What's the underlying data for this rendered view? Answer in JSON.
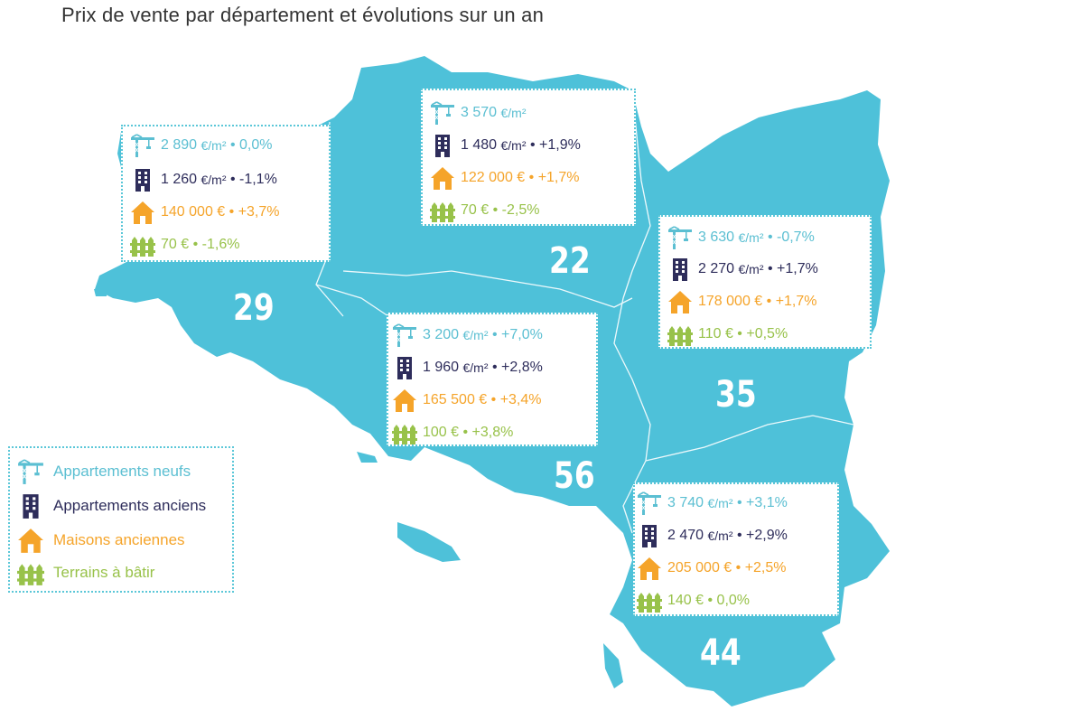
{
  "title": "Prix de vente par département et évolutions sur un an",
  "colors": {
    "map": "#4ec1d9",
    "neuf": "#5bbfd2",
    "ancien": "#2e2d5b",
    "maison": "#f5a42a",
    "terrain": "#98c24a"
  },
  "departments": [
    {
      "code": "29",
      "neuf": {
        "value": "2 890",
        "unit": "€/m²",
        "change": "0,0%"
      },
      "ancien": {
        "value": "1 260",
        "unit": "€/m²",
        "change": "-1,1%"
      },
      "maison": {
        "value": "140 000 €",
        "change": "+3,7%"
      },
      "terrain": {
        "value": "70 €",
        "change": "-1,6%"
      }
    },
    {
      "code": "22",
      "neuf": {
        "value": "3 570",
        "unit": "€/m²",
        "change": ""
      },
      "ancien": {
        "value": "1 480",
        "unit": "€/m²",
        "change": "+1,9%"
      },
      "maison": {
        "value": "122 000 €",
        "change": "+1,7%"
      },
      "terrain": {
        "value": "70 €",
        "change": "-2,5%"
      }
    },
    {
      "code": "35",
      "neuf": {
        "value": "3 630",
        "unit": "€/m²",
        "change": "-0,7%"
      },
      "ancien": {
        "value": "2 270",
        "unit": "€/m²",
        "change": "+1,7%"
      },
      "maison": {
        "value": "178 000 €",
        "change": "+1,7%"
      },
      "terrain": {
        "value": "110 €",
        "change": "+0,5%"
      }
    },
    {
      "code": "56",
      "neuf": {
        "value": "3 200",
        "unit": "€/m²",
        "change": "+7,0%"
      },
      "ancien": {
        "value": "1 960",
        "unit": "€/m²",
        "change": "+2,8%"
      },
      "maison": {
        "value": "165 500 €",
        "change": "+3,4%"
      },
      "terrain": {
        "value": "100 €",
        "change": "+3,8%"
      }
    },
    {
      "code": "44",
      "neuf": {
        "value": "3 740",
        "unit": "€/m²",
        "change": "+3,1%"
      },
      "ancien": {
        "value": "2 470",
        "unit": "€/m²",
        "change": "+2,9%"
      },
      "maison": {
        "value": "205 000 €",
        "change": "+2,5%"
      },
      "terrain": {
        "value": "140 €",
        "change": "0,0%"
      }
    }
  ],
  "legend": {
    "neuf": "Appartements neufs",
    "ancien": "Appartements anciens",
    "maison": "Maisons anciennes",
    "terrain": "Terrains à bâtir"
  },
  "icons": [
    "crane-icon",
    "building-icon",
    "house-icon",
    "fence-icon"
  ]
}
